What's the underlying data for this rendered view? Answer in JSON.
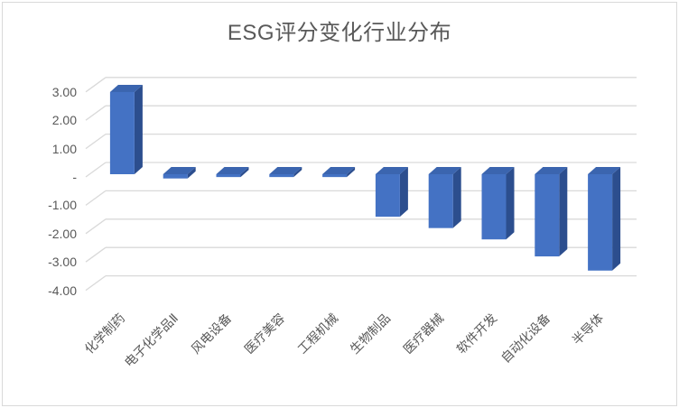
{
  "title": "ESG评分变化行业分布",
  "chart_data": {
    "type": "bar",
    "style": "3d-column",
    "title": "ESG评分变化行业分布",
    "categories": [
      "化学制药",
      "电子化学品Ⅱ",
      "风电设备",
      "医疗美容",
      "工程机械",
      "生物制品",
      "医疗器械",
      "软件开发",
      "自动化设备",
      "半导体"
    ],
    "values": [
      2.9,
      -0.15,
      -0.1,
      -0.1,
      -0.1,
      -1.5,
      -1.9,
      -2.3,
      -2.9,
      -3.4
    ],
    "xlabel": "",
    "ylabel": "",
    "y_ticks": [
      "3.00",
      "2.00",
      "1.00",
      "-",
      "-1.00",
      "-2.00",
      "-3.00",
      "-4.00"
    ],
    "y_tick_values": [
      3,
      2,
      1,
      0,
      -1,
      -2,
      -3,
      -4
    ],
    "ylim": [
      -4,
      3
    ],
    "grid": true,
    "legend": false,
    "colors": {
      "bar_front": "#4472C4",
      "bar_top": "#3B65AF",
      "bar_side": "#2C4E8E",
      "gridline": "#D9D9D9",
      "text": "#595959",
      "frame_border": "#D9D9D9"
    }
  }
}
